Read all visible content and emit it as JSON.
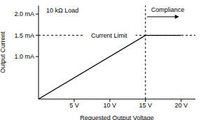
{
  "chart_data": {
    "type": "line",
    "x_label": "Requested Output Voltage",
    "y_label": "Output Current",
    "x": [
      0,
      15,
      20
    ],
    "series": [
      {
        "name": "Output Current",
        "color": "#000000",
        "values": [
          0,
          1.5,
          1.5
        ]
      }
    ],
    "xlim": [
      0,
      22
    ],
    "xticks": [
      {
        "value": 5,
        "label": "5 V"
      },
      {
        "value": 10,
        "label": "10 V"
      },
      {
        "value": 15,
        "label": "15 V"
      },
      {
        "value": 20,
        "label": "20 V"
      }
    ],
    "ylim": [
      0,
      2.2
    ],
    "yticks": [
      {
        "value": 1,
        "label": "1.0 mA"
      },
      {
        "value": 1.5,
        "label": "1.5 mA"
      },
      {
        "value": 2,
        "label": "2.0 mA"
      }
    ],
    "grid": false,
    "annotations": [
      "10 kΩ Load"
    ],
    "reference_lines": [
      {
        "axis": "y",
        "value": 1.5,
        "label": "Current Limit",
        "line_style": "dashed"
      },
      {
        "axis": "x",
        "value": 15,
        "label": "Compliance",
        "line_style": "dashed"
      }
    ]
  }
}
